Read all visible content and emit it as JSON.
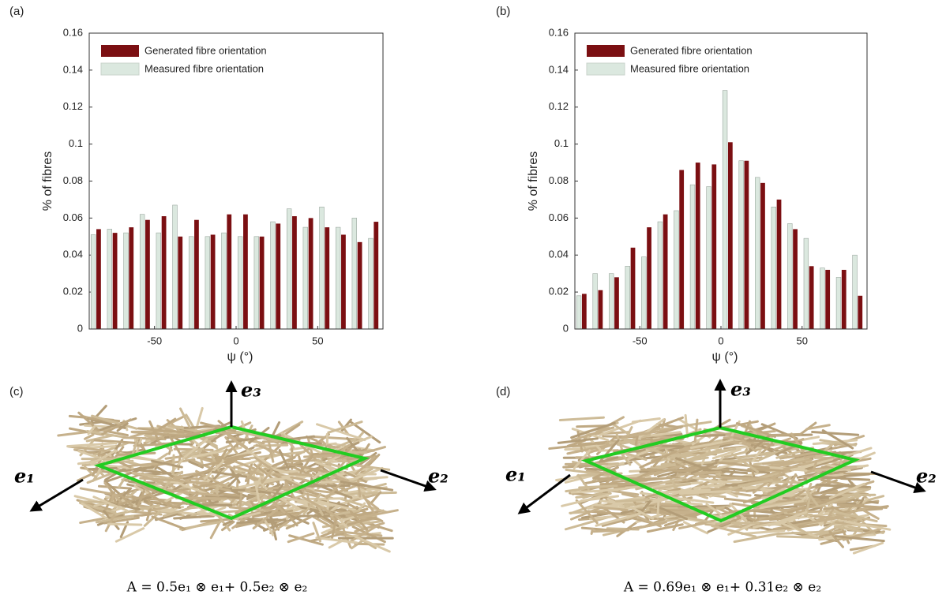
{
  "chart_data": [
    {
      "type": "bar",
      "panel_label": "(a)",
      "x_label": "ψ (°)",
      "y_label": "% of fibres",
      "x": [
        -85,
        -75,
        -65,
        -55,
        -45,
        -35,
        -25,
        -15,
        -5,
        5,
        15,
        25,
        35,
        45,
        55,
        65,
        75,
        85
      ],
      "series": [
        {
          "name": "Generated fibre orientation",
          "color": "#7b0f12",
          "values": [
            0.054,
            0.052,
            0.055,
            0.059,
            0.061,
            0.05,
            0.059,
            0.051,
            0.062,
            0.062,
            0.05,
            0.057,
            0.061,
            0.06,
            0.055,
            0.051,
            0.047,
            0.058
          ]
        },
        {
          "name": "Measured fibre orientation",
          "color": "#dbe8df",
          "values": [
            0.051,
            0.054,
            0.052,
            0.062,
            0.052,
            0.067,
            0.05,
            0.05,
            0.052,
            0.05,
            0.05,
            0.058,
            0.065,
            0.055,
            0.066,
            0.055,
            0.06,
            0.049
          ]
        }
      ],
      "xlim": [
        -90,
        90
      ],
      "xticks": [
        -50,
        0,
        50
      ],
      "ylim": [
        0,
        0.16
      ],
      "yticks": [
        0,
        0.02,
        0.04,
        0.06,
        0.08,
        0.1,
        0.12,
        0.14,
        0.16
      ],
      "legend": "upper left",
      "grid": false
    },
    {
      "type": "bar",
      "panel_label": "(b)",
      "x_label": "ψ (°)",
      "y_label": "% of fibres",
      "x": [
        -85,
        -75,
        -65,
        -55,
        -45,
        -35,
        -25,
        -15,
        -5,
        5,
        15,
        25,
        35,
        45,
        55,
        65,
        75,
        85
      ],
      "series": [
        {
          "name": "Generated fibre orientation",
          "color": "#7b0f12",
          "values": [
            0.019,
            0.021,
            0.028,
            0.044,
            0.055,
            0.062,
            0.086,
            0.09,
            0.089,
            0.101,
            0.091,
            0.079,
            0.07,
            0.054,
            0.034,
            0.032,
            0.032,
            0.018
          ]
        },
        {
          "name": "Measured fibre orientation",
          "color": "#dbe8df",
          "values": [
            0.018,
            0.03,
            0.03,
            0.034,
            0.039,
            0.058,
            0.064,
            0.078,
            0.077,
            0.129,
            0.091,
            0.082,
            0.066,
            0.057,
            0.049,
            0.033,
            0.028,
            0.04
          ]
        }
      ],
      "xlim": [
        -90,
        90
      ],
      "xticks": [
        -50,
        0,
        50
      ],
      "ylim": [
        0,
        0.16
      ],
      "yticks": [
        0,
        0.02,
        0.04,
        0.06,
        0.08,
        0.1,
        0.12,
        0.14,
        0.16
      ],
      "legend": "upper left",
      "grid": false
    }
  ],
  "renders": [
    {
      "panel_label": "(c)",
      "axes": [
        "e₁",
        "e₂",
        "e₃"
      ],
      "caption": "A = 0.5e₁ ⊗ e₁+ 0.5e₂ ⊗ e₂"
    },
    {
      "panel_label": "(d)",
      "axes": [
        "e₁",
        "e₂",
        "e₃"
      ],
      "caption": "A = 0.69e₁ ⊗ e₁+ 0.31e₂ ⊗ e₂"
    }
  ]
}
